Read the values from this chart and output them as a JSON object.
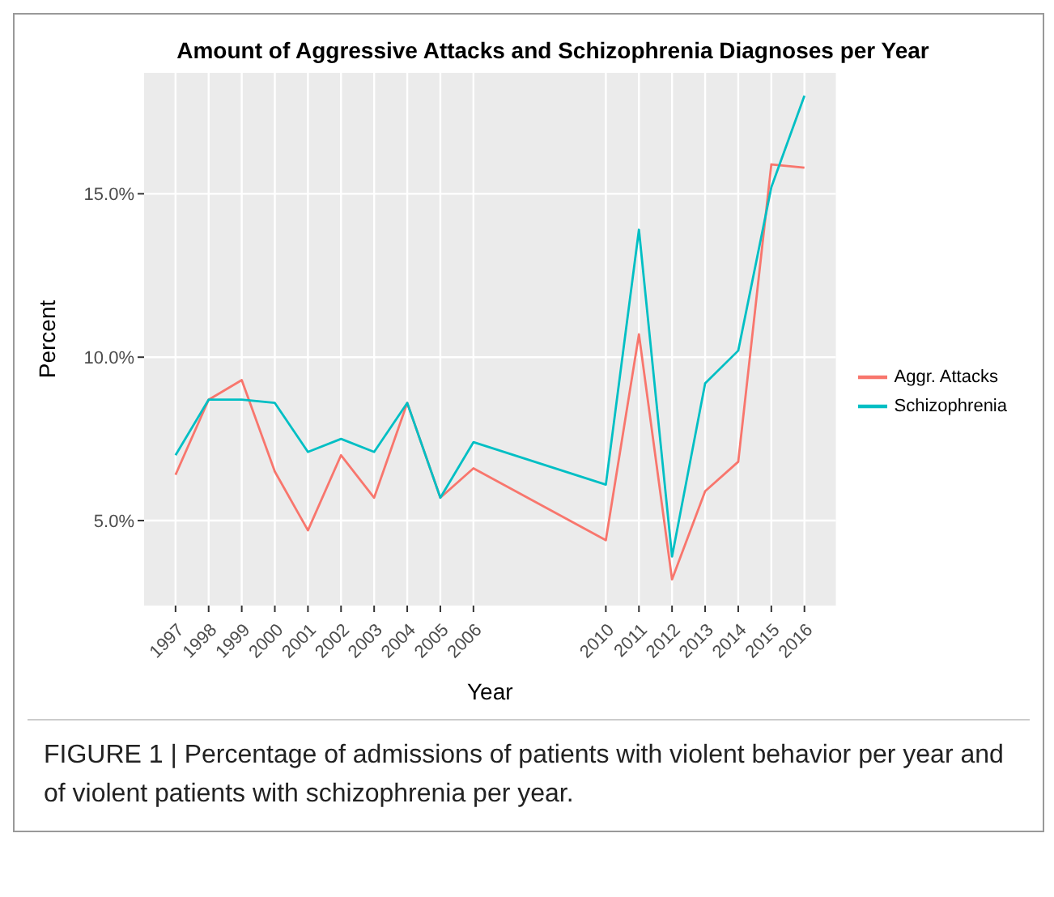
{
  "chart_data": {
    "type": "line",
    "title": "Amount of Aggressive Attacks and Schizophrenia Diagnoses per Year",
    "xlabel": "Year",
    "ylabel": "Percent",
    "x": [
      1997,
      1998,
      1999,
      2000,
      2001,
      2002,
      2003,
      2004,
      2005,
      2006,
      2010,
      2011,
      2012,
      2013,
      2014,
      2015,
      2016
    ],
    "series": [
      {
        "name": "Aggr. Attacks",
        "color": "#f8766d",
        "values": [
          6.4,
          8.7,
          9.3,
          6.5,
          4.7,
          7.0,
          5.7,
          8.6,
          5.7,
          6.6,
          4.4,
          10.7,
          3.2,
          5.9,
          6.8,
          15.9,
          15.8
        ]
      },
      {
        "name": "Schizophrenia",
        "color": "#00bfc4",
        "values": [
          7.0,
          8.7,
          8.7,
          8.6,
          7.1,
          7.5,
          7.1,
          8.6,
          5.7,
          7.4,
          6.1,
          13.9,
          3.9,
          9.2,
          10.2,
          15.2,
          18.0
        ]
      }
    ],
    "xlim": [
      1996.05,
      2016.95
    ],
    "xticks": [
      1997,
      1998,
      1999,
      2000,
      2001,
      2002,
      2003,
      2004,
      2005,
      2006,
      2010,
      2011,
      2012,
      2013,
      2014,
      2015,
      2016
    ],
    "ylim": [
      2.4,
      18.7
    ],
    "yticks": [
      {
        "value": 5,
        "label": "5.0%"
      },
      {
        "value": 10,
        "label": "10.0%"
      },
      {
        "value": 15,
        "label": "15.0%"
      }
    ],
    "grid": true,
    "legend": "right",
    "marker": "none",
    "line_style": "solid",
    "annotations": [
      "FIGURE 1 | Percentage of admissions of patients with violent behavior per year and of violent patients with schizophrenia per year."
    ]
  }
}
